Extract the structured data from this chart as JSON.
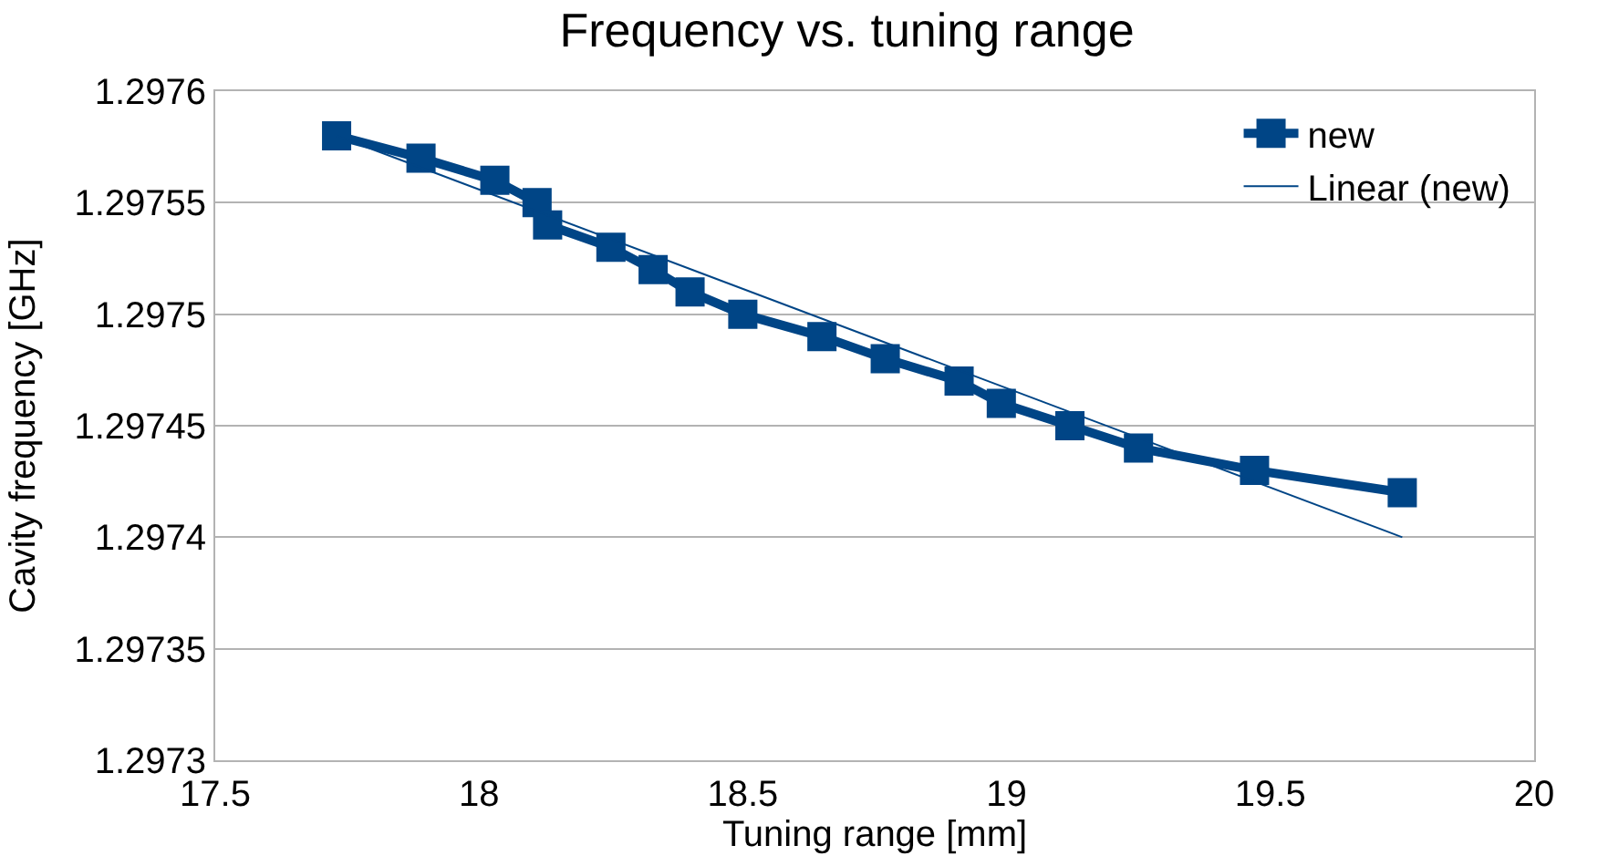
{
  "chart_data": {
    "type": "line",
    "title": "Frequency vs. tuning range",
    "xlabel": "Tuning range [mm]",
    "ylabel": "Cavity frequency [GHz]",
    "x": [
      17.73,
      17.89,
      18.03,
      18.11,
      18.13,
      18.25,
      18.33,
      18.4,
      18.5,
      18.65,
      18.77,
      18.91,
      18.99,
      19.12,
      19.25,
      19.47,
      19.75
    ],
    "series": [
      {
        "name": "new",
        "color": "#004586",
        "marker": "square",
        "values": [
          1.29758,
          1.29757,
          1.29756,
          1.29755,
          1.29754,
          1.29753,
          1.29752,
          1.29751,
          1.2975,
          1.29749,
          1.29748,
          1.29747,
          1.29746,
          1.29745,
          1.29744,
          1.29743,
          1.29742
        ]
      },
      {
        "name": "Linear (new)",
        "color": "#004586",
        "marker": "none",
        "x": [
          17.73,
          19.75
        ],
        "values": [
          1.29758,
          1.2974
        ]
      }
    ],
    "xlim": [
      17.5,
      20
    ],
    "xticks": [
      17.5,
      18,
      18.5,
      19,
      19.5,
      20
    ],
    "ylim": [
      1.2973,
      1.2976
    ],
    "yticks": [
      1.2973,
      1.29735,
      1.2974,
      1.29745,
      1.2975,
      1.29755,
      1.2976
    ],
    "grid": "y",
    "legend": "top right"
  }
}
